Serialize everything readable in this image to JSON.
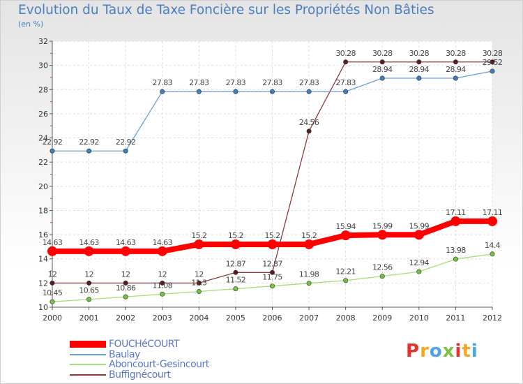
{
  "chart_data": {
    "type": "line",
    "title": "Evolution du Taux de Taxe Foncière sur les Propriétés Non Bâties",
    "subtitle": "(en %)",
    "categories": [
      "2000",
      "2001",
      "2002",
      "2003",
      "2004",
      "2005",
      "2006",
      "2007",
      "2008",
      "2009",
      "2010",
      "2011",
      "2012"
    ],
    "ylim": [
      10,
      32
    ],
    "yticks": [
      10,
      12,
      14,
      16,
      18,
      20,
      22,
      24,
      26,
      28,
      30,
      32
    ],
    "series": [
      {
        "name": "FOUCHéCOURT",
        "color": "#ff0000",
        "marker": "#ff0000",
        "values": [
          14.63,
          14.63,
          14.63,
          14.63,
          15.2,
          15.2,
          15.2,
          15.2,
          15.94,
          15.99,
          15.99,
          17.11,
          17.11
        ],
        "labels": [
          "14.63",
          "14.63",
          "14.63",
          "14.63",
          "15.2",
          "15.2",
          "15.2",
          "15.2",
          "15.94",
          "15.99",
          "15.99",
          "17.11",
          "17.11"
        ]
      },
      {
        "name": "Baulay",
        "color": "#6a9fd0",
        "marker": "#3d7fc0",
        "values": [
          22.92,
          22.92,
          22.92,
          27.83,
          27.83,
          27.83,
          27.83,
          27.83,
          27.83,
          28.94,
          28.94,
          28.94,
          29.52
        ],
        "labels": [
          "22.92",
          "22.92",
          "22.92",
          "27.83",
          "27.83",
          "27.83",
          "27.83",
          "27.83",
          "27.83",
          "28.94",
          "28.94",
          "28.94",
          "29.52"
        ]
      },
      {
        "name": "Aboncourt-Gesincourt",
        "color": "#a6de7a",
        "marker": "#74c23c",
        "values": [
          10.45,
          10.65,
          10.86,
          11.08,
          11.3,
          11.52,
          11.75,
          11.98,
          12.21,
          12.56,
          12.94,
          13.98,
          14.4
        ],
        "labels": [
          "10.45",
          "10.65",
          "10.86",
          "11.08",
          "11.3",
          "11.52",
          "11.75",
          "11.98",
          "12.21",
          "12.56",
          "12.94",
          "13.98",
          "14.4"
        ]
      },
      {
        "name": "Buffignécourt",
        "color": "#8b3a3a",
        "marker": "#5a1c1c",
        "values": [
          12,
          12,
          12,
          12,
          12,
          12.87,
          12.87,
          24.56,
          30.28,
          30.28,
          30.28,
          30.28,
          30.28
        ],
        "labels": [
          "12",
          "12",
          "12",
          "12",
          "12",
          "12.87",
          "12.87",
          "24.56",
          "30.28",
          "30.28",
          "30.28",
          "30.28",
          "30.28"
        ]
      }
    ],
    "legend_position": "bottom-left"
  },
  "logo": {
    "text": "Proxiti",
    "colors": [
      "#e8312f",
      "#f5a623",
      "#4fa3e0",
      "#7cc142"
    ]
  }
}
